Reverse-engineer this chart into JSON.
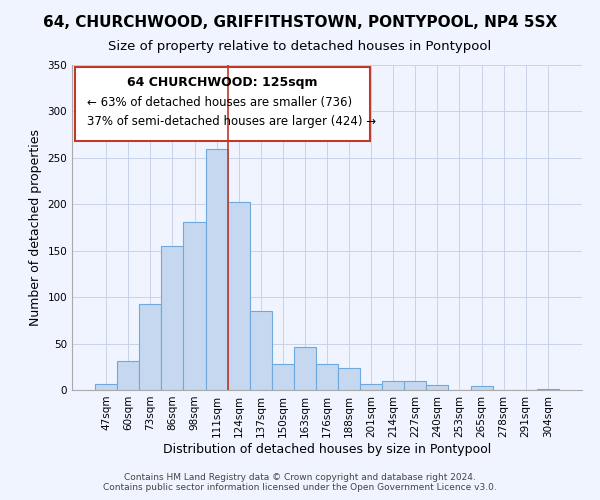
{
  "title": "64, CHURCHWOOD, GRIFFITHSTOWN, PONTYPOOL, NP4 5SX",
  "subtitle": "Size of property relative to detached houses in Pontypool",
  "xlabel": "Distribution of detached houses by size in Pontypool",
  "ylabel": "Number of detached properties",
  "bar_labels": [
    "47sqm",
    "60sqm",
    "73sqm",
    "86sqm",
    "98sqm",
    "111sqm",
    "124sqm",
    "137sqm",
    "150sqm",
    "163sqm",
    "176sqm",
    "188sqm",
    "201sqm",
    "214sqm",
    "227sqm",
    "240sqm",
    "253sqm",
    "265sqm",
    "278sqm",
    "291sqm",
    "304sqm"
  ],
  "bar_values": [
    6,
    31,
    93,
    155,
    181,
    260,
    202,
    85,
    28,
    46,
    28,
    24,
    7,
    10,
    10,
    5,
    0,
    4,
    0,
    0,
    1
  ],
  "bar_color": "#c5d8f0",
  "bar_edge_color": "#6fa8dc",
  "highlight_line_index": 5,
  "ylim": [
    0,
    350
  ],
  "yticks": [
    0,
    50,
    100,
    150,
    200,
    250,
    300,
    350
  ],
  "annotation_title": "64 CHURCHWOOD: 125sqm",
  "annotation_line1": "← 63% of detached houses are smaller (736)",
  "annotation_line2": "37% of semi-detached houses are larger (424) →",
  "footer_line1": "Contains HM Land Registry data © Crown copyright and database right 2024.",
  "footer_line2": "Contains public sector information licensed under the Open Government Licence v3.0.",
  "title_fontsize": 11,
  "subtitle_fontsize": 9.5,
  "axis_label_fontsize": 9,
  "tick_fontsize": 7.5,
  "annotation_title_fontsize": 9,
  "annotation_body_fontsize": 8.5,
  "footer_fontsize": 6.5,
  "background_color": "#f0f4ff",
  "grid_color": "#c8d4e8",
  "ann_box_color": "#c0392b",
  "highlight_line_color": "#c0392b"
}
